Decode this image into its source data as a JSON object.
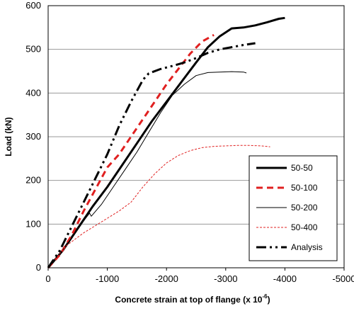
{
  "chart_data": {
    "type": "line",
    "xlabel": "Concrete strain at top of flange  (x 10",
    "xlabel_exp": "-6",
    "xlabel_close": ")",
    "ylabel": "Load (kN)",
    "xlim": [
      0,
      -5000
    ],
    "ylim": [
      0,
      600
    ],
    "x_ticks": [
      0,
      -1000,
      -2000,
      -3000,
      -4000,
      -5000
    ],
    "y_ticks": [
      0,
      100,
      200,
      300,
      400,
      500,
      600
    ],
    "grid": "horizontal",
    "legend_position": "bottom-right",
    "series": [
      {
        "name": "50-50",
        "color": "#000000",
        "style": "solid-thick",
        "x": [
          0,
          -250,
          -500,
          -750,
          -1000,
          -1250,
          -1500,
          -1750,
          -2000,
          -2250,
          -2500,
          -2700,
          -2900,
          -3100,
          -3300,
          -3500,
          -3700,
          -3900,
          -4000
        ],
        "y": [
          0,
          40,
          90,
          140,
          185,
          235,
          285,
          335,
          380,
          425,
          470,
          505,
          530,
          548,
          550,
          555,
          562,
          570,
          572
        ]
      },
      {
        "name": "50-100",
        "color": "#e02020",
        "style": "dashed-thick",
        "x": [
          0,
          -200,
          -400,
          -600,
          -800,
          -1000,
          -1200,
          -1400,
          -1600,
          -1800,
          -2000,
          -2200,
          -2400,
          -2600,
          -2800
        ],
        "y": [
          0,
          30,
          75,
          130,
          180,
          230,
          260,
          300,
          340,
          380,
          420,
          455,
          490,
          518,
          533
        ]
      },
      {
        "name": "50-200",
        "color": "#000000",
        "style": "solid-thin",
        "x": [
          0,
          -300,
          -500,
          -700,
          -730,
          -900,
          -1100,
          -1300,
          -1500,
          -1700,
          -1900,
          -2100,
          -2300,
          -2500,
          -2700,
          -2900,
          -3100,
          -3300,
          -3350
        ],
        "y": [
          0,
          50,
          90,
          125,
          118,
          145,
          185,
          225,
          265,
          310,
          355,
          395,
          420,
          440,
          447,
          448,
          449,
          448,
          446
        ]
      },
      {
        "name": "50-400",
        "color": "#e02020",
        "style": "dotted-thin",
        "x": [
          0,
          -300,
          -600,
          -900,
          -1200,
          -1400,
          -1600,
          -1800,
          -2000,
          -2200,
          -2400,
          -2600,
          -2800,
          -3000,
          -3200,
          -3400,
          -3600,
          -3750
        ],
        "y": [
          0,
          50,
          80,
          105,
          130,
          150,
          185,
          215,
          240,
          257,
          268,
          275,
          278,
          279,
          280,
          280,
          279,
          277
        ]
      },
      {
        "name": "Analysis",
        "color": "#000000",
        "style": "dash-dot-thick",
        "x": [
          0,
          -200,
          -400,
          -600,
          -800,
          -1000,
          -1200,
          -1400,
          -1600,
          -1700,
          -1900,
          -2100,
          -2300,
          -2500,
          -2700,
          -2900,
          -3100,
          -3300,
          -3500
        ],
        "y": [
          0,
          40,
          95,
          150,
          205,
          260,
          325,
          380,
          430,
          445,
          455,
          462,
          470,
          480,
          492,
          500,
          505,
          510,
          514
        ]
      }
    ]
  }
}
